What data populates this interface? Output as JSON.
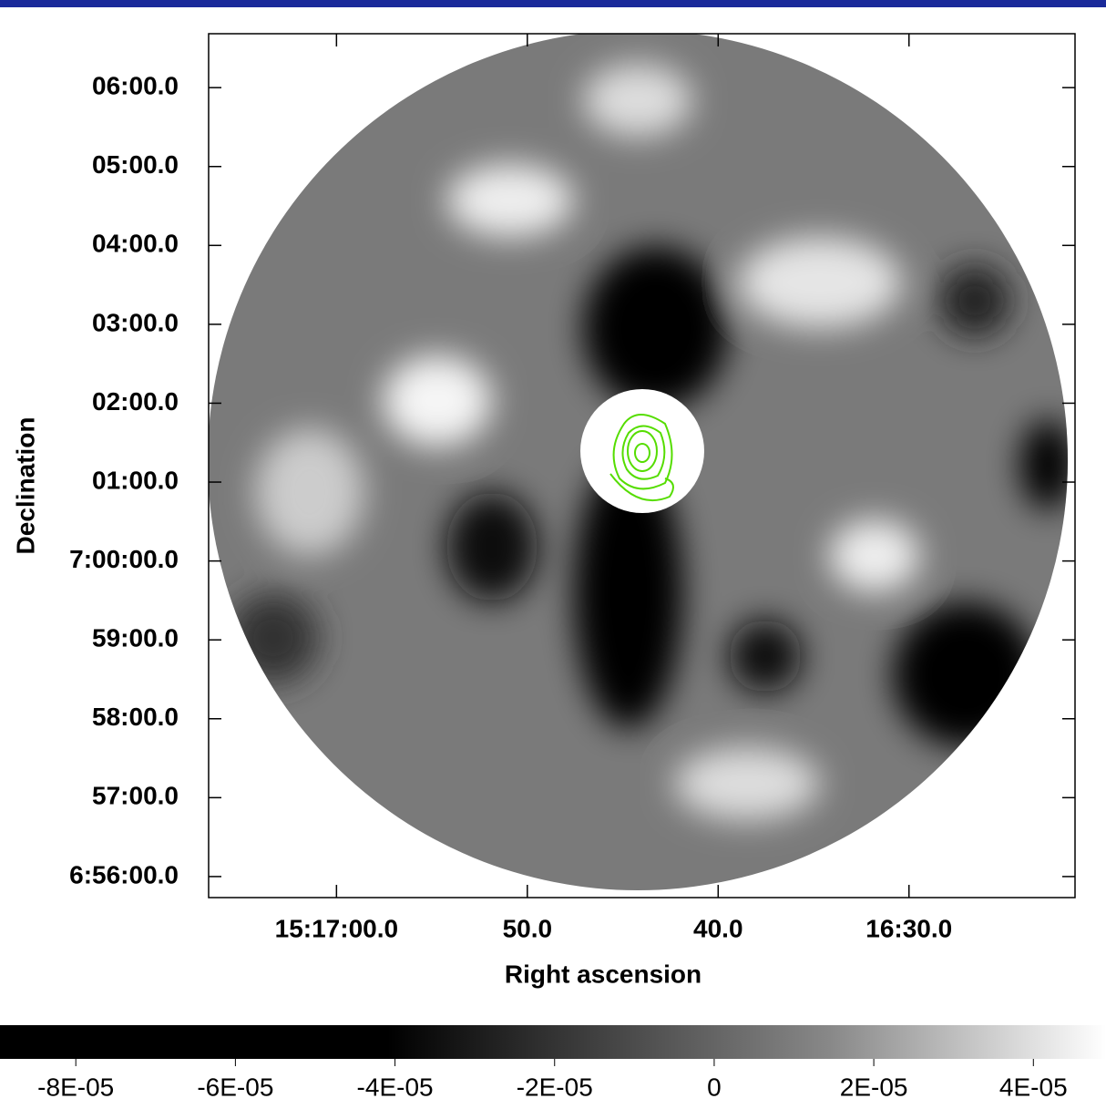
{
  "chart_data": {
    "type": "image",
    "xlabel": "Right ascension",
    "ylabel": "Declination",
    "xlim": [
      55026.7,
      54981.3
    ],
    "ylim": [
      25601,
      24944
    ],
    "xticks": [
      {
        "value": 55020,
        "label": "15:17:00.0"
      },
      {
        "value": 55010,
        "label": "50.0"
      },
      {
        "value": 55000,
        "label": "40.0"
      },
      {
        "value": 54990,
        "label": "16:30.0"
      }
    ],
    "yticks": [
      {
        "value": 25560,
        "label": "06:00.0"
      },
      {
        "value": 25500,
        "label": "05:00.0"
      },
      {
        "value": 25440,
        "label": "04:00.0"
      },
      {
        "value": 25380,
        "label": "03:00.0"
      },
      {
        "value": 25320,
        "label": "02:00.0"
      },
      {
        "value": 25260,
        "label": "01:00.0"
      },
      {
        "value": 25200,
        "label": "7:00:00.0"
      },
      {
        "value": 25140,
        "label": "59:00.0"
      },
      {
        "value": 25080,
        "label": "58:00.0"
      },
      {
        "value": 25020,
        "label": "57:00.0"
      },
      {
        "value": 24960,
        "label": "6:56:00.0"
      }
    ],
    "colorbar": {
      "lim": [
        -8.95e-05,
        4.91e-05
      ],
      "ticks": [
        {
          "value": -8e-05,
          "label": "-8E-05"
        },
        {
          "value": -6e-05,
          "label": "-6E-05"
        },
        {
          "value": -4e-05,
          "label": "-4E-05"
        },
        {
          "value": -2e-05,
          "label": "-2E-05"
        },
        0,
        {
          "value": 2e-05,
          "label": "2E-05"
        },
        {
          "value": 4e-05,
          "label": "4E-05"
        }
      ]
    },
    "contour_color": "#55dd00"
  }
}
